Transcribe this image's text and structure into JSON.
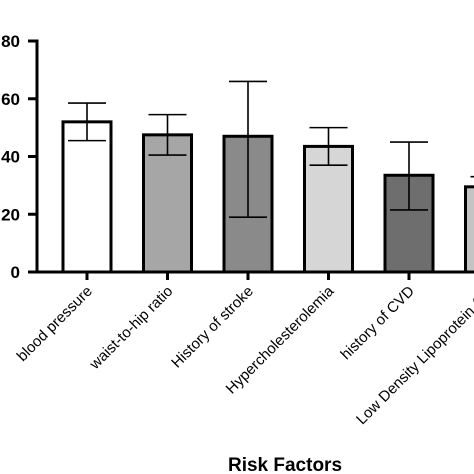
{
  "chart_data": {
    "type": "bar",
    "title": "",
    "xlabel": "Risk Factors",
    "ylabel": "",
    "ylim": [
      0,
      80
    ],
    "yticks": [
      0,
      20,
      40,
      60,
      80
    ],
    "ytick_labels": [
      "0",
      "20",
      "40",
      "60",
      "80"
    ],
    "grid": false,
    "categories": [
      "blood pressure",
      "waist-to-hip ratio",
      "History of stroke",
      "Hypercholesterolemia",
      "history of CVD",
      "Low Density Lipoprotein (LD"
    ],
    "values": [
      52,
      47.5,
      47,
      43.5,
      33.5,
      29.5
    ],
    "error_low": [
      45.5,
      40.5,
      19,
      37,
      21.5,
      null
    ],
    "error_high": [
      58.5,
      54.5,
      66,
      50,
      45,
      33
    ],
    "bar_colors": [
      "#ffffff",
      "#a6a6a6",
      "#8a8a8a",
      "#d6d6d6",
      "#6e6e6e",
      "#c4c4c4"
    ]
  }
}
